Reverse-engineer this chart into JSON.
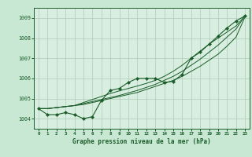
{
  "xlabel": "Graphe pression niveau de la mer (hPa)",
  "background_color": "#c8e8d4",
  "plot_bg_color": "#d8eee0",
  "grid_color": "#b0ccb8",
  "line_color": "#1a5c28",
  "xlim": [
    -0.5,
    23.5
  ],
  "ylim": [
    1003.5,
    1009.5
  ],
  "yticks": [
    1004,
    1005,
    1006,
    1007,
    1008,
    1009
  ],
  "xticks": [
    0,
    1,
    2,
    3,
    4,
    5,
    6,
    7,
    8,
    9,
    10,
    11,
    12,
    13,
    14,
    15,
    16,
    17,
    18,
    19,
    20,
    21,
    22,
    23
  ],
  "series": {
    "main": [
      1004.5,
      1004.2,
      1004.2,
      1004.3,
      1004.2,
      1004.0,
      1004.1,
      1004.9,
      1005.4,
      1005.5,
      1005.8,
      1006.0,
      1006.0,
      1006.0,
      1005.8,
      1005.85,
      1006.2,
      1007.0,
      1007.3,
      1007.7,
      1008.1,
      1008.5,
      1008.85,
      1009.1
    ],
    "line2": [
      1004.5,
      1004.5,
      1004.55,
      1004.6,
      1004.65,
      1004.7,
      1004.8,
      1004.9,
      1005.0,
      1005.1,
      1005.2,
      1005.3,
      1005.45,
      1005.6,
      1005.75,
      1005.9,
      1006.1,
      1006.35,
      1006.6,
      1006.9,
      1007.2,
      1007.6,
      1008.05,
      1009.05
    ],
    "line3": [
      1004.5,
      1004.5,
      1004.55,
      1004.6,
      1004.65,
      1004.75,
      1004.85,
      1004.95,
      1005.05,
      1005.15,
      1005.28,
      1005.4,
      1005.55,
      1005.7,
      1005.9,
      1006.1,
      1006.35,
      1006.65,
      1006.95,
      1007.3,
      1007.65,
      1008.05,
      1008.45,
      1009.1
    ],
    "line4": [
      1004.5,
      1004.5,
      1004.55,
      1004.6,
      1004.65,
      1004.8,
      1004.95,
      1005.1,
      1005.25,
      1005.38,
      1005.5,
      1005.62,
      1005.75,
      1005.9,
      1006.1,
      1006.35,
      1006.65,
      1007.0,
      1007.35,
      1007.7,
      1008.0,
      1008.3,
      1008.6,
      1009.1
    ]
  }
}
